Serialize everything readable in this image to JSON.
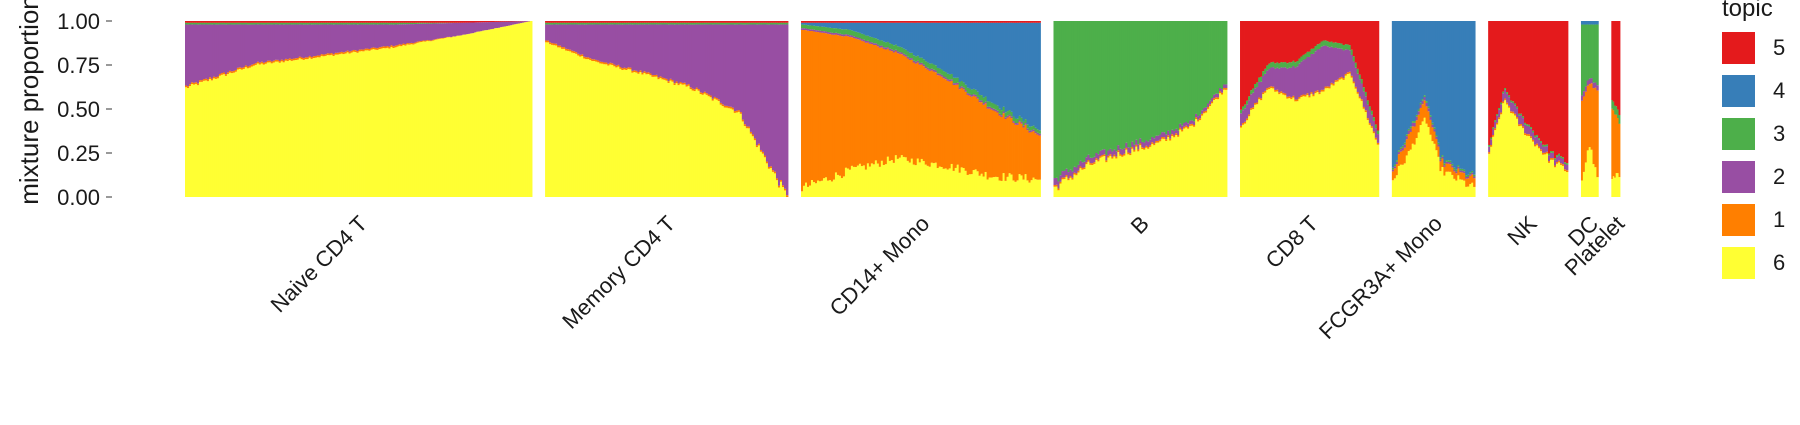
{
  "chart_data": {
    "type": "structure-plot (stacked bar)",
    "ylabel": "mixture proportion",
    "ylim": [
      0,
      1
    ],
    "yticks": [
      "0.00",
      "0.25",
      "0.50",
      "0.75",
      "1.00"
    ],
    "grid": false,
    "legend": {
      "title": "topic",
      "placement": "right",
      "entries": [
        {
          "label": "5",
          "color": "#e41a1c"
        },
        {
          "label": "4",
          "color": "#377eb8"
        },
        {
          "label": "3",
          "color": "#4daf4a"
        },
        {
          "label": "2",
          "color": "#984ea3"
        },
        {
          "label": "1",
          "color": "#ff7f00"
        },
        {
          "label": "6",
          "color": "#ffff33"
        }
      ]
    },
    "stack_order_bottom_to_top": [
      "6",
      "1",
      "2",
      "3",
      "4",
      "5"
    ],
    "groups": [
      {
        "label": "Naive CD4 T",
        "relative_cells": 1.0,
        "profiles": {
          "6": [
            0.62,
            0.75,
            0.8,
            0.85,
            0.92,
            1.0
          ],
          "1": [
            0.01,
            0.01,
            0.01,
            0.01,
            0.0,
            0.0
          ],
          "2": [
            0.35,
            0.22,
            0.17,
            0.12,
            0.07,
            0.0
          ],
          "3": [
            0.01,
            0.01,
            0.01,
            0.01,
            0.0,
            0.0
          ],
          "4": [
            0.0,
            0.0,
            0.0,
            0.0,
            0.0,
            0.0
          ],
          "5": [
            0.01,
            0.01,
            0.01,
            0.01,
            0.01,
            0.0
          ]
        }
      },
      {
        "label": "Memory CD4 T",
        "relative_cells": 0.7,
        "profiles": {
          "6": [
            0.88,
            0.77,
            0.7,
            0.62,
            0.48,
            0.0
          ],
          "1": [
            0.01,
            0.01,
            0.01,
            0.01,
            0.01,
            0.01
          ],
          "2": [
            0.09,
            0.2,
            0.27,
            0.35,
            0.49,
            0.97
          ],
          "3": [
            0.01,
            0.01,
            0.01,
            0.01,
            0.01,
            0.01
          ],
          "4": [
            0.0,
            0.0,
            0.0,
            0.0,
            0.0,
            0.0
          ],
          "5": [
            0.01,
            0.01,
            0.01,
            0.01,
            0.01,
            0.01
          ]
        }
      },
      {
        "label": "CD14+ Mono",
        "relative_cells": 0.69,
        "profiles": {
          "6": [
            0.05,
            0.15,
            0.22,
            0.18,
            0.12,
            0.1
          ],
          "1": [
            0.9,
            0.76,
            0.6,
            0.5,
            0.38,
            0.25
          ],
          "2": [
            0.01,
            0.01,
            0.01,
            0.01,
            0.01,
            0.01
          ],
          "3": [
            0.02,
            0.03,
            0.03,
            0.03,
            0.03,
            0.02
          ],
          "4": [
            0.01,
            0.04,
            0.13,
            0.27,
            0.45,
            0.61
          ],
          "5": [
            0.01,
            0.01,
            0.01,
            0.01,
            0.01,
            0.01
          ]
        }
      },
      {
        "label": "B",
        "relative_cells": 0.5,
        "profiles": {
          "6": [
            0.05,
            0.18,
            0.25,
            0.3,
            0.4,
            0.62
          ],
          "1": [
            0.01,
            0.01,
            0.01,
            0.01,
            0.01,
            0.01
          ],
          "2": [
            0.04,
            0.03,
            0.03,
            0.03,
            0.02,
            0.02
          ],
          "3": [
            0.9,
            0.78,
            0.71,
            0.66,
            0.57,
            0.35
          ],
          "4": [
            0.0,
            0.0,
            0.0,
            0.0,
            0.0,
            0.0
          ],
          "5": [
            0.0,
            0.0,
            0.0,
            0.0,
            0.0,
            0.0
          ]
        }
      },
      {
        "label": "CD8 T",
        "relative_cells": 0.4,
        "profiles": {
          "6": [
            0.4,
            0.62,
            0.55,
            0.6,
            0.7,
            0.3
          ],
          "1": [
            0.01,
            0.01,
            0.01,
            0.01,
            0.01,
            0.01
          ],
          "2": [
            0.07,
            0.1,
            0.18,
            0.25,
            0.12,
            0.05
          ],
          "3": [
            0.02,
            0.03,
            0.03,
            0.03,
            0.03,
            0.02
          ],
          "4": [
            0.0,
            0.0,
            0.0,
            0.0,
            0.0,
            0.0
          ],
          "5": [
            0.5,
            0.24,
            0.23,
            0.11,
            0.14,
            0.62
          ]
        }
      },
      {
        "label": "FCGR3A+ Mono",
        "relative_cells": 0.24,
        "profiles": {
          "6": [
            0.1,
            0.25,
            0.45,
            0.15,
            0.1,
            0.05
          ],
          "1": [
            0.05,
            0.1,
            0.1,
            0.05,
            0.04,
            0.05
          ],
          "2": [
            0.01,
            0.02,
            0.02,
            0.01,
            0.01,
            0.01
          ],
          "3": [
            0.01,
            0.01,
            0.01,
            0.01,
            0.01,
            0.01
          ],
          "4": [
            0.83,
            0.62,
            0.42,
            0.78,
            0.84,
            0.88
          ],
          "5": [
            0.0,
            0.0,
            0.0,
            0.0,
            0.0,
            0.0
          ]
        }
      },
      {
        "label": "NK",
        "relative_cells": 0.23,
        "profiles": {
          "6": [
            0.25,
            0.55,
            0.4,
            0.3,
            0.2,
            0.15
          ],
          "1": [
            0.01,
            0.01,
            0.01,
            0.01,
            0.01,
            0.01
          ],
          "2": [
            0.03,
            0.05,
            0.05,
            0.04,
            0.03,
            0.03
          ],
          "3": [
            0.01,
            0.01,
            0.01,
            0.01,
            0.01,
            0.01
          ],
          "4": [
            0.0,
            0.0,
            0.0,
            0.0,
            0.0,
            0.0
          ],
          "5": [
            0.7,
            0.38,
            0.53,
            0.64,
            0.75,
            0.8
          ]
        }
      },
      {
        "label": "DC",
        "relative_cells": 0.05,
        "profiles": {
          "6": [
            0.1,
            0.3,
            0.1
          ],
          "1": [
            0.45,
            0.35,
            0.5
          ],
          "2": [
            0.03,
            0.03,
            0.03
          ],
          "3": [
            0.4,
            0.3,
            0.35
          ],
          "4": [
            0.02,
            0.02,
            0.02
          ],
          "5": [
            0.0,
            0.0,
            0.0
          ]
        }
      },
      {
        "label": "Platelet",
        "relative_cells": 0.025,
        "profiles": {
          "6": [
            0.1,
            0.12
          ],
          "1": [
            0.4,
            0.3
          ],
          "2": [
            0.0,
            0.0
          ],
          "3": [
            0.05,
            0.05
          ],
          "4": [
            0.0,
            0.0
          ],
          "5": [
            0.45,
            0.53
          ]
        }
      }
    ]
  }
}
